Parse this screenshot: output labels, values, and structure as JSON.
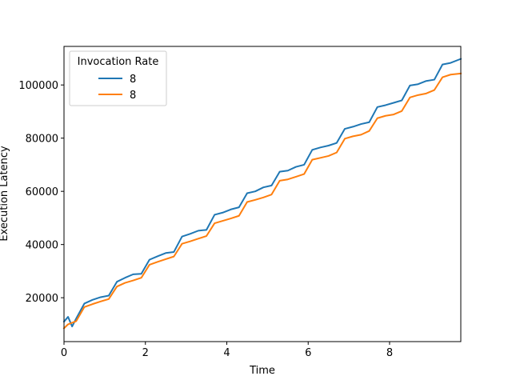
{
  "chart_data": {
    "type": "line",
    "title": "",
    "xlabel": "Time",
    "ylabel": "Execution Latency",
    "xlim": [
      0,
      9.75
    ],
    "ylim": [
      3500,
      114500
    ],
    "xticks": [
      0,
      2,
      4,
      6,
      8
    ],
    "yticks": [
      20000,
      40000,
      60000,
      80000,
      100000
    ],
    "grid": false,
    "legend": {
      "title": "Invocation Rate",
      "placement": "top-left"
    },
    "colors": [
      "#1f77b4",
      "#ff7f0e"
    ],
    "x": [
      0,
      0.1,
      0.2,
      0.3,
      0.5,
      0.7,
      0.9,
      1.1,
      1.3,
      1.5,
      1.7,
      1.9,
      2.1,
      2.3,
      2.5,
      2.7,
      2.9,
      3.1,
      3.3,
      3.5,
      3.7,
      3.9,
      4.1,
      4.3,
      4.5,
      4.7,
      4.9,
      5.1,
      5.3,
      5.5,
      5.7,
      5.9,
      6.1,
      6.3,
      6.5,
      6.7,
      6.9,
      7.1,
      7.3,
      7.5,
      7.7,
      7.9,
      8.1,
      8.3,
      8.5,
      8.7,
      8.9,
      9.1,
      9.3,
      9.5,
      9.75
    ],
    "series": [
      {
        "name": "8",
        "values": [
          11000,
          12800,
          9200,
          12200,
          17800,
          19200,
          20200,
          20800,
          26000,
          27500,
          28800,
          29000,
          34300,
          35600,
          36800,
          37200,
          43000,
          44000,
          45200,
          45500,
          51200,
          52000,
          53200,
          54000,
          59300,
          60000,
          61500,
          62200,
          67400,
          67800,
          69200,
          70000,
          75600,
          76500,
          77200,
          78200,
          83500,
          84300,
          85300,
          86000,
          91700,
          92400,
          93300,
          94200,
          99800,
          100300,
          101500,
          102000,
          107700,
          108300,
          109800
        ]
      },
      {
        "name": "8",
        "values": [
          8500,
          10000,
          10600,
          11200,
          16500,
          17600,
          18600,
          19500,
          24200,
          25600,
          26500,
          27500,
          32400,
          33500,
          34500,
          35500,
          40300,
          41200,
          42200,
          43200,
          48000,
          48900,
          49800,
          50800,
          56000,
          56800,
          57700,
          58800,
          64000,
          64500,
          65500,
          66500,
          71900,
          72600,
          73300,
          74600,
          79800,
          80700,
          81300,
          82700,
          87500,
          88400,
          88900,
          90200,
          95300,
          96200,
          96800,
          98100,
          102900,
          103900,
          104300
        ]
      }
    ]
  }
}
